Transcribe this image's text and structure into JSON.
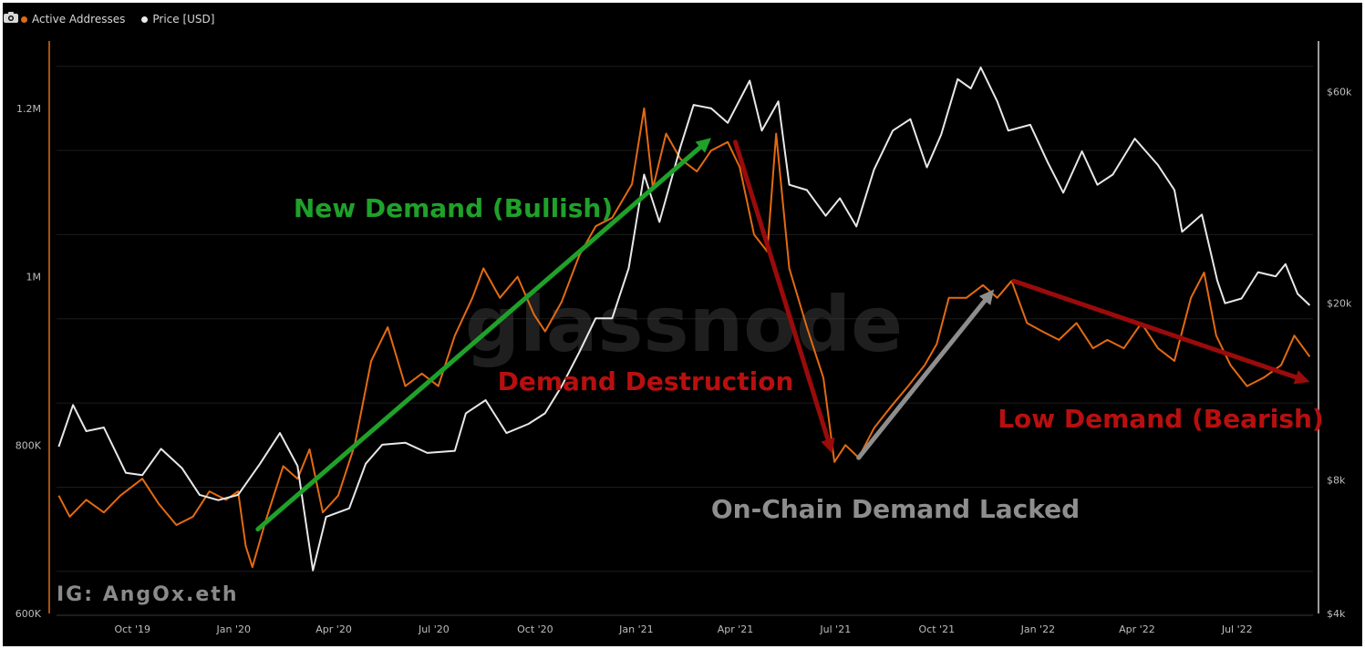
{
  "legend": [
    {
      "label": "Active Addresses",
      "color": "#e36a12"
    },
    {
      "label": "Price [USD]",
      "color": "#e8e8e8"
    }
  ],
  "icons": {
    "camera": "camera-icon"
  },
  "watermark": "glassnode",
  "credit": "IG: AngOx.eth",
  "chart_data": {
    "type": "line",
    "x_ticks": [
      "Oct '19",
      "Jan '20",
      "Apr '20",
      "Jul '20",
      "Oct '20",
      "Jan '21",
      "Apr '21",
      "Jul '21",
      "Oct '21",
      "Jan '22",
      "Apr '22",
      "Jul '22"
    ],
    "x_range": [
      "2019-07-24",
      "2022-09-08"
    ],
    "y_left": {
      "ticks": [
        "600K",
        "800K",
        "1M",
        "1.2M"
      ],
      "values": [
        600000,
        800000,
        1000000,
        1200000
      ],
      "range": [
        600000,
        1280000
      ]
    },
    "y_right": {
      "scale": "log",
      "ticks": [
        "$4k",
        "$8k",
        "$20k",
        "$60k"
      ],
      "values": [
        4000,
        8000,
        20000,
        60000
      ],
      "range": [
        4000,
        78000
      ]
    },
    "series": [
      {
        "name": "Active Addresses",
        "color": "#e36a12",
        "axis": "left",
        "points": [
          [
            "2019-07-26",
            740000
          ],
          [
            "2019-08-05",
            715000
          ],
          [
            "2019-08-20",
            735000
          ],
          [
            "2019-09-05",
            720000
          ],
          [
            "2019-09-20",
            740000
          ],
          [
            "2019-10-10",
            760000
          ],
          [
            "2019-10-25",
            730000
          ],
          [
            "2019-11-10",
            705000
          ],
          [
            "2019-11-25",
            715000
          ],
          [
            "2019-12-10",
            745000
          ],
          [
            "2019-12-25",
            735000
          ],
          [
            "2020-01-05",
            745000
          ],
          [
            "2020-01-12",
            680000
          ],
          [
            "2020-01-18",
            655000
          ],
          [
            "2020-01-30",
            710000
          ],
          [
            "2020-02-15",
            775000
          ],
          [
            "2020-02-28",
            760000
          ],
          [
            "2020-03-10",
            795000
          ],
          [
            "2020-03-22",
            720000
          ],
          [
            "2020-04-05",
            740000
          ],
          [
            "2020-04-20",
            800000
          ],
          [
            "2020-05-05",
            900000
          ],
          [
            "2020-05-20",
            940000
          ],
          [
            "2020-06-05",
            870000
          ],
          [
            "2020-06-20",
            885000
          ],
          [
            "2020-07-05",
            870000
          ],
          [
            "2020-07-20",
            930000
          ],
          [
            "2020-08-05",
            975000
          ],
          [
            "2020-08-15",
            1010000
          ],
          [
            "2020-08-30",
            975000
          ],
          [
            "2020-09-15",
            1000000
          ],
          [
            "2020-09-30",
            955000
          ],
          [
            "2020-10-10",
            935000
          ],
          [
            "2020-10-25",
            970000
          ],
          [
            "2020-11-10",
            1025000
          ],
          [
            "2020-11-25",
            1060000
          ],
          [
            "2020-12-10",
            1070000
          ],
          [
            "2020-12-28",
            1110000
          ],
          [
            "2021-01-08",
            1200000
          ],
          [
            "2021-01-16",
            1105000
          ],
          [
            "2021-01-28",
            1170000
          ],
          [
            "2021-02-10",
            1140000
          ],
          [
            "2021-02-25",
            1125000
          ],
          [
            "2021-03-10",
            1150000
          ],
          [
            "2021-03-25",
            1160000
          ],
          [
            "2021-04-05",
            1130000
          ],
          [
            "2021-04-18",
            1050000
          ],
          [
            "2021-04-30",
            1030000
          ],
          [
            "2021-05-08",
            1170000
          ],
          [
            "2021-05-20",
            1010000
          ],
          [
            "2021-06-05",
            940000
          ],
          [
            "2021-06-20",
            880000
          ],
          [
            "2021-06-30",
            780000
          ],
          [
            "2021-07-10",
            800000
          ],
          [
            "2021-07-22",
            785000
          ],
          [
            "2021-08-05",
            820000
          ],
          [
            "2021-08-20",
            845000
          ],
          [
            "2021-09-05",
            870000
          ],
          [
            "2021-09-20",
            895000
          ],
          [
            "2021-10-01",
            920000
          ],
          [
            "2021-10-12",
            975000
          ],
          [
            "2021-10-28",
            975000
          ],
          [
            "2021-11-12",
            990000
          ],
          [
            "2021-11-25",
            975000
          ],
          [
            "2021-12-08",
            995000
          ],
          [
            "2021-12-22",
            945000
          ],
          [
            "2022-01-05",
            935000
          ],
          [
            "2022-01-20",
            925000
          ],
          [
            "2022-02-05",
            945000
          ],
          [
            "2022-02-20",
            915000
          ],
          [
            "2022-03-05",
            925000
          ],
          [
            "2022-03-20",
            915000
          ],
          [
            "2022-04-05",
            945000
          ],
          [
            "2022-04-20",
            915000
          ],
          [
            "2022-05-05",
            900000
          ],
          [
            "2022-05-20",
            975000
          ],
          [
            "2022-06-01",
            1005000
          ],
          [
            "2022-06-12",
            930000
          ],
          [
            "2022-06-25",
            895000
          ],
          [
            "2022-07-10",
            870000
          ],
          [
            "2022-07-25",
            880000
          ],
          [
            "2022-08-10",
            895000
          ],
          [
            "2022-08-22",
            930000
          ],
          [
            "2022-09-05",
            905000
          ]
        ]
      },
      {
        "name": "Price [USD]",
        "color": "#e8e8e8",
        "axis": "right",
        "points": [
          [
            "2019-07-26",
            9500
          ],
          [
            "2019-08-08",
            11800
          ],
          [
            "2019-08-20",
            10300
          ],
          [
            "2019-09-05",
            10500
          ],
          [
            "2019-09-25",
            8300
          ],
          [
            "2019-10-10",
            8200
          ],
          [
            "2019-10-27",
            9400
          ],
          [
            "2019-11-15",
            8500
          ],
          [
            "2019-12-01",
            7400
          ],
          [
            "2019-12-18",
            7200
          ],
          [
            "2020-01-05",
            7400
          ],
          [
            "2020-01-25",
            8700
          ],
          [
            "2020-02-12",
            10200
          ],
          [
            "2020-02-28",
            8600
          ],
          [
            "2020-03-13",
            5000
          ],
          [
            "2020-03-25",
            6600
          ],
          [
            "2020-04-15",
            6900
          ],
          [
            "2020-04-30",
            8700
          ],
          [
            "2020-05-15",
            9600
          ],
          [
            "2020-06-05",
            9700
          ],
          [
            "2020-06-25",
            9200
          ],
          [
            "2020-07-20",
            9300
          ],
          [
            "2020-07-30",
            11300
          ],
          [
            "2020-08-17",
            12100
          ],
          [
            "2020-09-05",
            10200
          ],
          [
            "2020-09-25",
            10700
          ],
          [
            "2020-10-10",
            11300
          ],
          [
            "2020-10-25",
            13000
          ],
          [
            "2020-11-10",
            15500
          ],
          [
            "2020-11-25",
            18500
          ],
          [
            "2020-12-10",
            18500
          ],
          [
            "2020-12-25",
            24000
          ],
          [
            "2021-01-08",
            39000
          ],
          [
            "2021-01-22",
            30500
          ],
          [
            "2021-02-10",
            45000
          ],
          [
            "2021-02-22",
            56000
          ],
          [
            "2021-03-10",
            55000
          ],
          [
            "2021-03-25",
            51000
          ],
          [
            "2021-04-14",
            63500
          ],
          [
            "2021-04-25",
            49000
          ],
          [
            "2021-05-10",
            57000
          ],
          [
            "2021-05-20",
            37000
          ],
          [
            "2021-06-05",
            36000
          ],
          [
            "2021-06-22",
            31500
          ],
          [
            "2021-07-05",
            34500
          ],
          [
            "2021-07-20",
            29800
          ],
          [
            "2021-08-05",
            40000
          ],
          [
            "2021-08-22",
            49000
          ],
          [
            "2021-09-07",
            52000
          ],
          [
            "2021-09-22",
            40500
          ],
          [
            "2021-10-05",
            48000
          ],
          [
            "2021-10-20",
            64000
          ],
          [
            "2021-11-01",
            61000
          ],
          [
            "2021-11-10",
            68000
          ],
          [
            "2021-11-25",
            57000
          ],
          [
            "2021-12-05",
            49000
          ],
          [
            "2021-12-25",
            50500
          ],
          [
            "2022-01-10",
            41500
          ],
          [
            "2022-01-24",
            35500
          ],
          [
            "2022-02-10",
            44000
          ],
          [
            "2022-02-24",
            37000
          ],
          [
            "2022-03-10",
            39000
          ],
          [
            "2022-03-30",
            47000
          ],
          [
            "2022-04-20",
            41000
          ],
          [
            "2022-05-05",
            36000
          ],
          [
            "2022-05-12",
            29000
          ],
          [
            "2022-05-30",
            31700
          ],
          [
            "2022-06-13",
            22500
          ],
          [
            "2022-06-20",
            20000
          ],
          [
            "2022-07-05",
            20500
          ],
          [
            "2022-07-20",
            23500
          ],
          [
            "2022-08-05",
            23000
          ],
          [
            "2022-08-14",
            24500
          ],
          [
            "2022-08-25",
            21000
          ],
          [
            "2022-09-05",
            19800
          ]
        ]
      }
    ],
    "annotations": [
      {
        "text": "New Demand (Bullish)",
        "color": "#1fa12a"
      },
      {
        "text": "Demand Destruction",
        "color": "#b80f0f"
      },
      {
        "text": "On-Chain Demand Lacked",
        "color": "#8e8e8e"
      },
      {
        "text": "Low Demand (Bearish)",
        "color": "#b80f0f"
      }
    ],
    "arrows": [
      {
        "color": "#1fa12a",
        "from": [
          "2020-01-23",
          700000
        ],
        "to": [
          "2021-03-10",
          1165000
        ]
      },
      {
        "color": "#9a0b0b",
        "from": [
          "2021-04-01",
          1160000
        ],
        "to": [
          "2021-06-28",
          790000
        ]
      },
      {
        "color": "#8e8e8e",
        "from": [
          "2021-07-22",
          785000
        ],
        "to": [
          "2021-11-22",
          985000
        ]
      },
      {
        "color": "#9a0b0b",
        "from": [
          "2021-12-10",
          995000
        ],
        "to": [
          "2022-09-05",
          875000
        ]
      }
    ]
  }
}
